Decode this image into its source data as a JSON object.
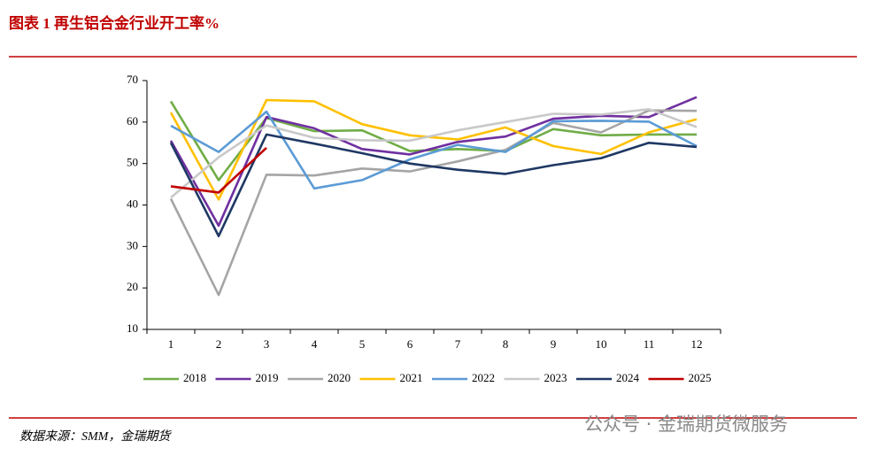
{
  "chart_data": {
    "type": "line",
    "title": "图表 1 再生铝合金行业开工率%",
    "source": "数据来源：SMM，金瑞期货",
    "watermark": "公众号 · 金瑞期货微服务",
    "categories": [
      "1",
      "2",
      "3",
      "4",
      "5",
      "6",
      "7",
      "8",
      "9",
      "10",
      "11",
      "12"
    ],
    "ylim": [
      10,
      70
    ],
    "yticks": [
      10,
      20,
      30,
      40,
      50,
      60,
      70
    ],
    "legend": "bottom",
    "series": [
      {
        "name": "2018",
        "color": "#70ad47",
        "values": [
          65,
          46,
          61,
          57.8,
          58,
          53,
          53.5,
          53,
          58.3,
          56.8,
          57,
          57
        ]
      },
      {
        "name": "2019",
        "color": "#7030a0",
        "values": [
          55.5,
          35,
          61.2,
          58.5,
          53.5,
          52.2,
          55.2,
          56.5,
          60.8,
          61.5,
          61.2,
          66
        ]
      },
      {
        "name": "2020",
        "color": "#a5a5a5",
        "values": [
          41.5,
          18.3,
          47.3,
          47.1,
          48.8,
          48.1,
          50.5,
          53.3,
          59.8,
          57.5,
          62.8,
          62.7
        ]
      },
      {
        "name": "2021",
        "color": "#ffc000",
        "values": [
          62.3,
          41.3,
          65.3,
          65,
          59.5,
          56.8,
          55.8,
          58.7,
          54.2,
          52.3,
          57.5,
          60.7
        ]
      },
      {
        "name": "2022",
        "color": "#5b9bd5",
        "values": [
          59.1,
          52.8,
          62.5,
          44,
          46,
          51,
          54.5,
          52.8,
          60.2,
          60.3,
          60.1,
          54.2
        ]
      },
      {
        "name": "2023",
        "color": "#c9c9c9",
        "values": [
          41.8,
          51.5,
          59.2,
          56.2,
          55.6,
          55.5,
          58,
          60,
          62,
          61.8,
          63.1,
          58.8
        ]
      },
      {
        "name": "2024",
        "color": "#1f3864",
        "values": [
          55,
          32.5,
          57,
          54.8,
          52.5,
          50,
          48.5,
          47.5,
          49.6,
          51.3,
          55,
          54
        ]
      },
      {
        "name": "2025",
        "color": "#c00000",
        "values": [
          44.5,
          43,
          53.8,
          null,
          null,
          null,
          null,
          null,
          null,
          null,
          null,
          null
        ]
      }
    ]
  }
}
